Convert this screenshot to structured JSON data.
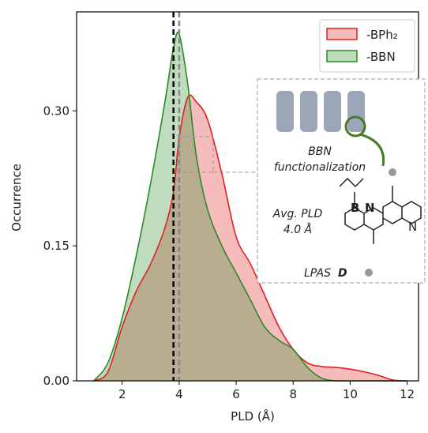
{
  "chart_data": {
    "type": "area",
    "x_label": "PLD (Å)",
    "y_label": "Occurrence",
    "x": [
      1,
      1.5,
      2,
      2.5,
      3,
      3.5,
      3.8,
      4,
      4.3,
      4.6,
      5,
      5.5,
      6,
      6.5,
      7,
      7.5,
      8,
      8.5,
      9,
      9.5,
      10,
      10.5,
      11,
      11.5,
      12
    ],
    "series": [
      {
        "name": "-BPh₂",
        "color": "#e02020",
        "values": [
          0,
          0.01,
          0.06,
          0.1,
          0.13,
          0.17,
          0.21,
          0.27,
          0.315,
          0.31,
          0.29,
          0.23,
          0.16,
          0.13,
          0.095,
          0.06,
          0.035,
          0.02,
          0.016,
          0.015,
          0.013,
          0.01,
          0.006,
          0.001,
          0
        ]
      },
      {
        "name": "-BBN",
        "color": "#2a8a2a",
        "values": [
          0,
          0.02,
          0.07,
          0.14,
          0.22,
          0.31,
          0.37,
          0.385,
          0.33,
          0.25,
          0.19,
          0.15,
          0.12,
          0.09,
          0.06,
          0.045,
          0.035,
          0.015,
          0.003,
          0,
          0,
          0,
          0,
          0,
          0
        ]
      }
    ],
    "vlines": [
      {
        "x": 3.8,
        "color": "#000000"
      },
      {
        "x": 4.0,
        "color": "#888888"
      }
    ],
    "xlim": [
      0.4,
      12.4
    ],
    "ylim": [
      0,
      0.41
    ],
    "xticks": [
      2,
      4,
      6,
      8,
      10,
      12
    ],
    "yticks": [
      {
        "value": 0,
        "label": "0.00"
      },
      {
        "value": 0.15,
        "label": "0.15"
      },
      {
        "value": 0.3,
        "label": "0.30"
      }
    ],
    "legend": "upper right",
    "inset": {
      "texts": [
        "BBN",
        "functionalization",
        "Avg. PLD",
        "4.0 Å",
        "LPAS",
        "D",
        "B",
        "N",
        "N"
      ]
    }
  }
}
